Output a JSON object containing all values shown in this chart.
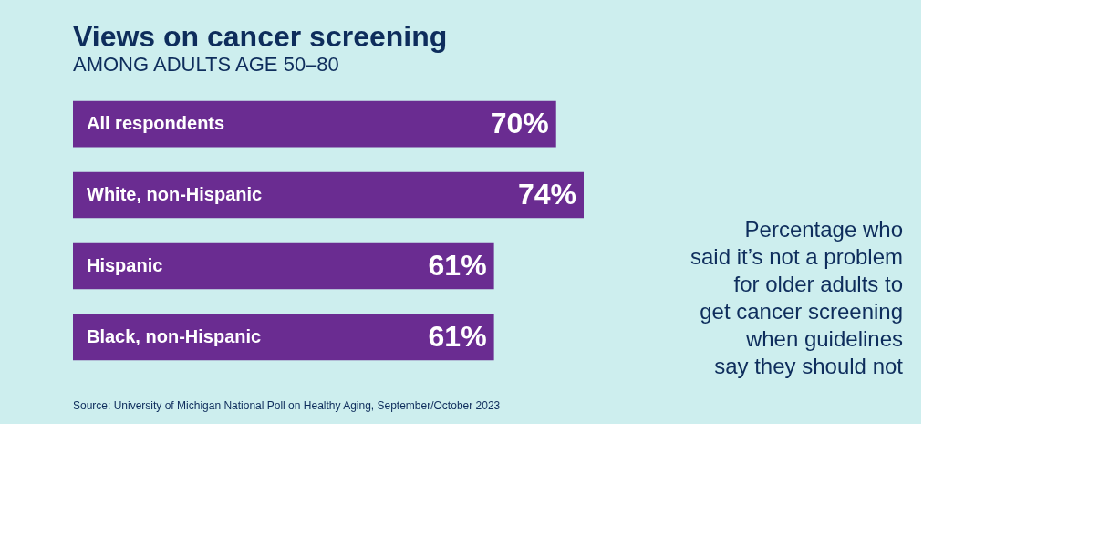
{
  "chart_data": {
    "type": "bar",
    "orientation": "horizontal",
    "title": "Views on cancer screening",
    "subtitle": "AMONG ADULTS AGE 50–80",
    "categories": [
      "All respondents",
      "White, non-Hispanic",
      "Hispanic",
      "Black, non-Hispanic"
    ],
    "values": [
      70,
      74,
      61,
      61
    ],
    "color": "#6a2c91",
    "value_labels": [
      "70%",
      "74%",
      "61%",
      "61%"
    ],
    "tick_labels": false,
    "grid": false,
    "annotations": [
      "Percentage who\nsaid it’s not a problem\nfor older adults to\nget cancer screening\nwhen guidelines\nsay they should not",
      "Source: University of Michigan National Poll on Healthy Aging, September/October 2023"
    ]
  }
}
